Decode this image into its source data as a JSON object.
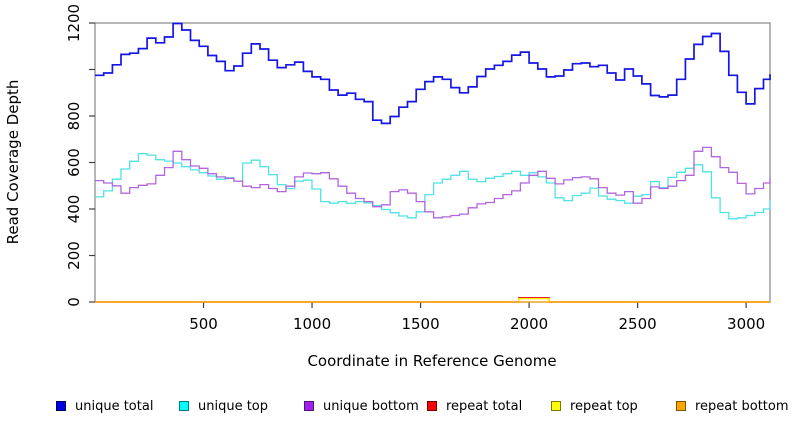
{
  "chart_data": {
    "type": "line",
    "title": "",
    "xlabel": "Coordinate in Reference Genome",
    "ylabel": "Read Coverage Depth",
    "xlim": [
      0,
      3110
    ],
    "ylim": [
      0,
      1200
    ],
    "grid": false,
    "legend_position": "bottom",
    "box_color": "#858585",
    "tick_color": "#404040",
    "x_ticks": [
      {
        "value": 500,
        "label": "500"
      },
      {
        "value": 1000,
        "label": "1000"
      },
      {
        "value": 1500,
        "label": "1500"
      },
      {
        "value": 2000,
        "label": "2000"
      },
      {
        "value": 2500,
        "label": "2500"
      },
      {
        "value": 3000,
        "label": "3000"
      }
    ],
    "y_ticks": [
      {
        "value": 0,
        "label": "0"
      },
      {
        "value": 200,
        "label": "200"
      },
      {
        "value": 400,
        "label": "400"
      },
      {
        "value": 600,
        "label": "600"
      },
      {
        "value": 800,
        "label": "800"
      },
      {
        "value": 1000,
        "label": ""
      },
      {
        "value": 1200,
        "label": "1200"
      }
    ],
    "series": [
      {
        "name": "unique total",
        "line_color": "#1515e6",
        "line_width": 1.7,
        "legend_fill": "#0000e0",
        "legend_border": "#000060",
        "x0": 0,
        "dx": 40,
        "y": [
          975,
          985,
          1020,
          1065,
          1070,
          1090,
          1135,
          1115,
          1140,
          1198,
          1170,
          1125,
          1100,
          1060,
          1035,
          995,
          1015,
          1070,
          1110,
          1088,
          1040,
          1008,
          1020,
          1032,
          992,
          968,
          958,
          912,
          890,
          898,
          872,
          862,
          782,
          768,
          798,
          838,
          862,
          915,
          948,
          968,
          958,
          922,
          900,
          925,
          970,
          1002,
          1018,
          1035,
          1062,
          1075,
          1028,
          1002,
          968,
          972,
          998,
          1025,
          1028,
          1012,
          1018,
          985,
          955,
          1002,
          972,
          938,
          888,
          882,
          890,
          958,
          1045,
          1108,
          1142,
          1155,
          1078,
          975,
          902,
          852,
          918,
          958,
          980
        ]
      },
      {
        "name": "unique top",
        "line_color": "#4fe3e3",
        "line_width": 1.3,
        "legend_fill": "#00ffff",
        "legend_border": "#007a7a",
        "x0": 0,
        "dx": 40,
        "y": [
          452,
          478,
          528,
          572,
          605,
          638,
          632,
          612,
          606,
          598,
          582,
          568,
          556,
          542,
          528,
          534,
          520,
          598,
          610,
          582,
          548,
          505,
          488,
          520,
          524,
          486,
          432,
          425,
          432,
          424,
          432,
          426,
          414,
          398,
          384,
          370,
          362,
          388,
          462,
          512,
          528,
          545,
          562,
          528,
          518,
          532,
          540,
          552,
          562,
          545,
          556,
          538,
          512,
          448,
          436,
          458,
          468,
          490,
          456,
          442,
          436,
          425,
          455,
          462,
          518,
          492,
          536,
          558,
          575,
          590,
          560,
          448,
          385,
          358,
          362,
          372,
          385,
          400,
          438
        ]
      },
      {
        "name": "unique bottom",
        "line_color": "#b365df",
        "line_width": 1.3,
        "legend_fill": "#a020f0",
        "legend_border": "#5a1177",
        "x0": 0,
        "dx": 40,
        "y": [
          522,
          512,
          500,
          468,
          492,
          502,
          508,
          545,
          578,
          648,
          612,
          585,
          575,
          552,
          538,
          532,
          520,
          498,
          492,
          505,
          488,
          475,
          498,
          538,
          555,
          552,
          556,
          530,
          498,
          468,
          445,
          432,
          410,
          418,
          475,
          482,
          468,
          432,
          388,
          362,
          366,
          372,
          378,
          405,
          422,
          428,
          445,
          462,
          478,
          512,
          545,
          562,
          532,
          508,
          525,
          535,
          538,
          530,
          492,
          468,
          460,
          475,
          425,
          445,
          495,
          488,
          498,
          522,
          545,
          648,
          665,
          625,
          578,
          558,
          510,
          465,
          488,
          512,
          535
        ]
      },
      {
        "name": "repeat total",
        "line_color": "#e60000",
        "line_width": 1.3,
        "legend_fill": "#ff0000",
        "legend_border": "#7a0000",
        "x": [
          0,
          1945,
          1952,
          2085,
          2092,
          3110
        ],
        "y": [
          0,
          0,
          18,
          18,
          0,
          0
        ]
      },
      {
        "name": "repeat top",
        "line_color": "#ffeb00",
        "line_width": 1.3,
        "legend_fill": "#ffff00",
        "legend_border": "#7a7a00",
        "x": [
          0,
          1945,
          1952,
          2085,
          2092,
          3110
        ],
        "y": [
          0,
          0,
          14,
          14,
          0,
          0
        ]
      },
      {
        "name": "repeat bottom",
        "line_color": "#ff9d00",
        "line_width": 1.3,
        "legend_fill": "#ffa500",
        "legend_border": "#7a5200",
        "x": [
          0,
          3110
        ],
        "y": [
          0,
          0
        ]
      }
    ]
  }
}
